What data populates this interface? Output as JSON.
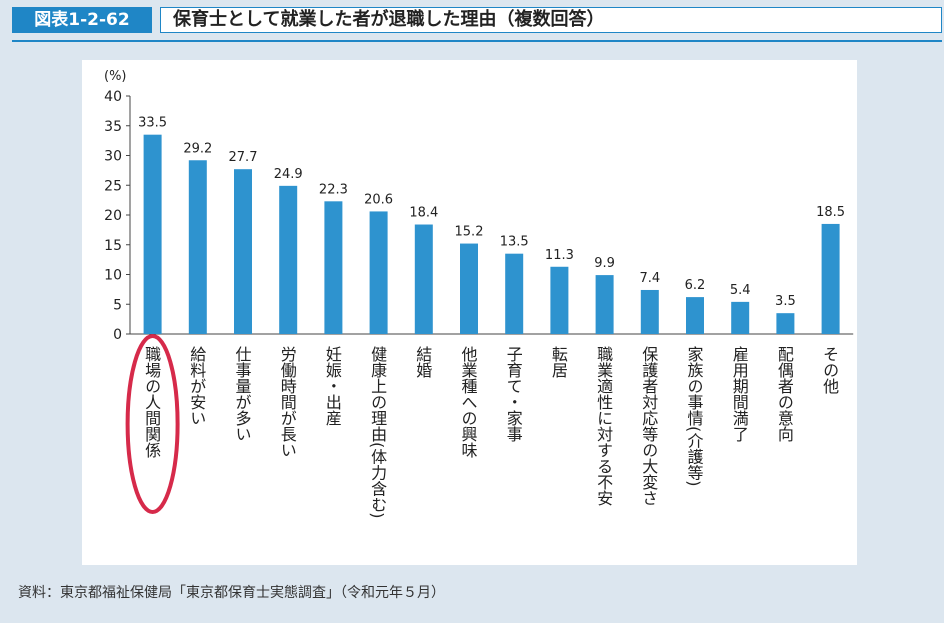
{
  "header": {
    "figure_label": "図表1-2-62",
    "title": "保育士として就業した者が退職した理由（複数回答）"
  },
  "source": "資料：東京都福祉保健局「東京都保育士実態調査」（令和元年５月）",
  "colors": {
    "bar": "#2e93cf",
    "accent": "#1f86c6",
    "highlight": "#d62a4a"
  },
  "chart_data": {
    "type": "bar",
    "unit_label": "(%)",
    "ylim": [
      0,
      40
    ],
    "yticks": [
      0,
      5,
      10,
      15,
      20,
      25,
      30,
      35,
      40
    ],
    "grid": false,
    "categories": [
      "職場の人間関係",
      "給料が安い",
      "仕事量が多い",
      "労働時間が長い",
      "妊娠・出産",
      "健康上の理由(体力含む)",
      "結婚",
      "他業種への興味",
      "子育て・家事",
      "転居",
      "職業適性に対する不安",
      "保護者対応等の大変さ",
      "家族の事情(介護等)",
      "雇用期間満了",
      "配偶者の意向",
      "その他"
    ],
    "values": [
      33.5,
      29.2,
      27.7,
      24.9,
      22.3,
      20.6,
      18.4,
      15.2,
      13.5,
      11.3,
      9.9,
      7.4,
      6.2,
      5.4,
      3.5,
      18.5
    ],
    "value_labels": [
      "33.5",
      "29.2",
      "27.7",
      "24.9",
      "22.3",
      "20.6",
      "18.4",
      "15.2",
      "13.5",
      "11.3",
      "9.9",
      "7.4",
      "6.2",
      "5.4",
      "3.5",
      "18.5"
    ],
    "highlighted_category_index": 0
  }
}
